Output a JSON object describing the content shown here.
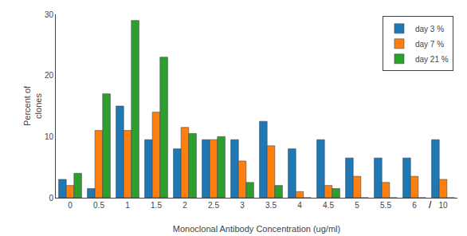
{
  "chart_data": {
    "type": "bar",
    "categories": [
      "0",
      "0.5",
      "1",
      "1.5",
      "2",
      "2.5",
      "3",
      "3.5",
      "4",
      "4.5",
      "5",
      "5.5",
      "6",
      "10"
    ],
    "series": [
      {
        "name": "day 3 %",
        "values": [
          3,
          1.5,
          15,
          9.5,
          8,
          9.5,
          9.5,
          12.5,
          8,
          9.5,
          6.5,
          6.5,
          6.5,
          9.5
        ]
      },
      {
        "name": "day 7 %",
        "values": [
          2,
          11,
          11,
          14,
          11.5,
          9.5,
          6,
          8.5,
          1,
          2,
          3.5,
          2.5,
          3.5,
          3
        ]
      },
      {
        "name": "day 21 %",
        "values": [
          4,
          17,
          29,
          23,
          10.5,
          10,
          2.5,
          2,
          0,
          1.5,
          0,
          0,
          0,
          0
        ]
      }
    ],
    "xlabel": "Monoclonal Antibody Concentration (ug/ml)",
    "ylabel": "Percent of\nclones",
    "ylim": [
      0,
      30
    ],
    "yticks": [
      0,
      10,
      20,
      30
    ],
    "legend": "upper right",
    "grid": false,
    "annotations": [
      {
        "text": "/",
        "x": "6"
      }
    ]
  }
}
